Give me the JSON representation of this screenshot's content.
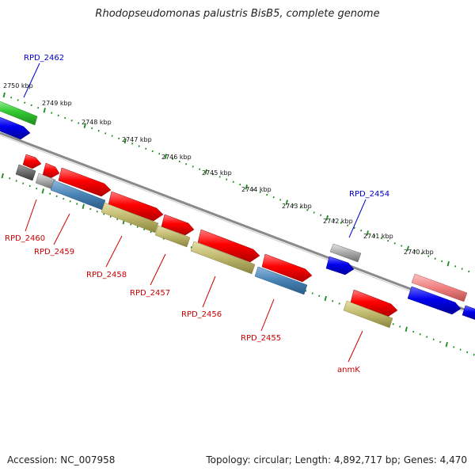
{
  "title": "Rhodopseudomonas palustris BisB5, complete genome",
  "footer": {
    "accession": "Accession: NC_007958",
    "summary": "Topology: circular; Length: 4,892,717 bp; Genes: 4,470"
  },
  "colors": {
    "backbone": "#808080",
    "tick": "#1a8a1a",
    "cds_forward": "#ff0000",
    "cds_blue": "#0000ee",
    "cds_green": "#33cc33",
    "cds_gray": "#a8a8a8",
    "cds_olive": "#bdb76b",
    "cds_steelblue": "#4682b4",
    "cds_pink": "#f08080",
    "label_forward": "#0000cc",
    "label_reverse": "#cc0000"
  },
  "scale_labels": [
    "2750 kbp",
    "2749 kbp",
    "2748 kbp",
    "2747 kbp",
    "2746 kbp",
    "2745 kbp",
    "2744 kbp",
    "2743 kbp",
    "2742 kbp",
    "2741 kbp",
    "2740 kbp"
  ],
  "gene_labels_top": [
    "RPD_2462",
    "RPD_2454"
  ],
  "gene_labels_bottom": [
    "RPD_2460",
    "RPD_2459",
    "RPD_2458",
    "RPD_2457",
    "RPD_2456",
    "RPD_2455",
    "anmK"
  ]
}
